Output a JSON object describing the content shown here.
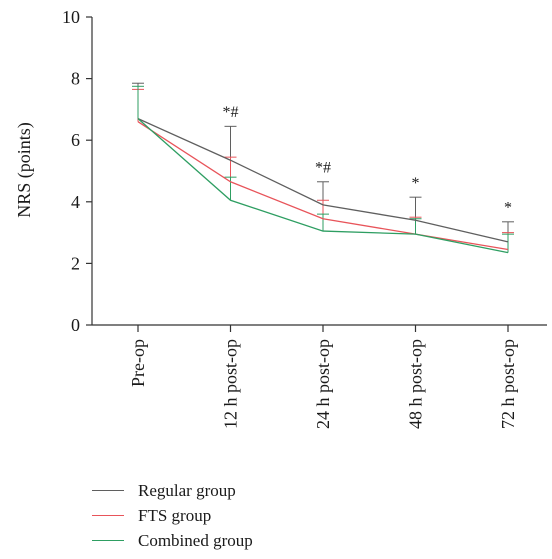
{
  "chart_data": {
    "type": "line",
    "ylabel": "NRS (points)",
    "ylim": [
      0,
      10
    ],
    "yticks": [
      0,
      2,
      4,
      6,
      8,
      10
    ],
    "grid": false,
    "legend_position": "bottom-left",
    "categories": [
      "Pre-op",
      "12 h post-op",
      "24 h post-op",
      "48 h post-op",
      "72 h post-op"
    ],
    "series": [
      {
        "name": "Regular group",
        "color": "#5f5f5f",
        "values": [
          6.7,
          5.35,
          3.9,
          3.4,
          2.7
        ],
        "error_upper": [
          7.85,
          6.45,
          4.65,
          4.15,
          3.35
        ]
      },
      {
        "name": "FTS group",
        "color": "#e8545a",
        "values": [
          6.6,
          4.65,
          3.45,
          2.95,
          2.45
        ],
        "error_upper": [
          7.65,
          5.45,
          4.05,
          3.5,
          3.0
        ]
      },
      {
        "name": "Combined group",
        "color": "#2e9e62",
        "values": [
          6.7,
          4.05,
          3.05,
          2.95,
          2.35
        ],
        "error_upper": [
          7.75,
          4.8,
          3.6,
          3.45,
          2.95
        ]
      }
    ],
    "annotations": [
      {
        "category": "12 h post-op",
        "text": "*#",
        "y": 6.75
      },
      {
        "category": "24 h post-op",
        "text": "*#",
        "y": 4.95
      },
      {
        "category": "48 h post-op",
        "text": "*",
        "y": 4.45
      },
      {
        "category": "72 h post-op",
        "text": "*",
        "y": 3.65
      }
    ]
  }
}
